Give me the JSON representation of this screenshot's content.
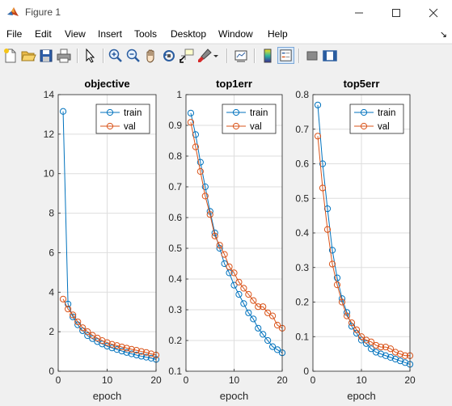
{
  "window": {
    "title": "Figure 1"
  },
  "menu": [
    "File",
    "Edit",
    "View",
    "Insert",
    "Tools",
    "Desktop",
    "Window",
    "Help"
  ],
  "toolbar": {
    "buttons": [
      "new-figure",
      "open-file",
      "save",
      "print",
      "edit-plot",
      "zoom-in",
      "zoom-out",
      "pan",
      "rotate-3d",
      "data-cursor",
      "brush",
      "link-plot",
      "insert-colorbar",
      "insert-legend",
      "hide-plot-tools",
      "show-plot-tools"
    ]
  },
  "colors": {
    "train": "#0072bd",
    "val": "#d95319"
  },
  "chart_data": [
    {
      "type": "line",
      "title": "objective",
      "xlabel": "epoch",
      "ylabel": "",
      "xlim": [
        0,
        20
      ],
      "ylim": [
        0,
        14
      ],
      "xticks": [
        0,
        10,
        20
      ],
      "yticks": [
        0,
        2,
        4,
        6,
        8,
        10,
        12,
        14
      ],
      "grid": true,
      "legend_position": "top-right",
      "x": [
        1,
        2,
        3,
        4,
        5,
        6,
        7,
        8,
        9,
        10,
        11,
        12,
        13,
        14,
        15,
        16,
        17,
        18,
        19,
        20
      ],
      "series": [
        {
          "name": "train",
          "values": [
            13.15,
            3.4,
            2.75,
            2.35,
            2.05,
            1.8,
            1.65,
            1.5,
            1.38,
            1.27,
            1.18,
            1.1,
            1.02,
            0.95,
            0.88,
            0.82,
            0.76,
            0.71,
            0.66,
            0.6
          ]
        },
        {
          "name": "val",
          "values": [
            3.65,
            3.15,
            2.85,
            2.5,
            2.2,
            2.0,
            1.82,
            1.68,
            1.55,
            1.45,
            1.36,
            1.3,
            1.23,
            1.17,
            1.11,
            1.06,
            1.0,
            0.95,
            0.88,
            0.82
          ]
        }
      ]
    },
    {
      "type": "line",
      "title": "top1err",
      "xlabel": "epoch",
      "ylabel": "",
      "xlim": [
        0,
        20
      ],
      "ylim": [
        0.1,
        1
      ],
      "xticks": [
        0,
        10,
        20
      ],
      "yticks": [
        0.1,
        0.2,
        0.3,
        0.4,
        0.5,
        0.6,
        0.7,
        0.8,
        0.9,
        1
      ],
      "grid": true,
      "legend_position": "top-right",
      "x": [
        1,
        2,
        3,
        4,
        5,
        6,
        7,
        8,
        9,
        10,
        11,
        12,
        13,
        14,
        15,
        16,
        17,
        18,
        19,
        20
      ],
      "series": [
        {
          "name": "train",
          "values": [
            0.94,
            0.87,
            0.78,
            0.7,
            0.62,
            0.55,
            0.5,
            0.45,
            0.42,
            0.38,
            0.35,
            0.32,
            0.29,
            0.27,
            0.24,
            0.22,
            0.2,
            0.18,
            0.17,
            0.16
          ]
        },
        {
          "name": "val",
          "values": [
            0.91,
            0.83,
            0.75,
            0.67,
            0.61,
            0.54,
            0.51,
            0.48,
            0.44,
            0.42,
            0.39,
            0.37,
            0.35,
            0.33,
            0.31,
            0.31,
            0.29,
            0.28,
            0.25,
            0.24
          ]
        }
      ]
    },
    {
      "type": "line",
      "title": "top5err",
      "xlabel": "epoch",
      "ylabel": "",
      "xlim": [
        0,
        20
      ],
      "ylim": [
        0,
        0.8
      ],
      "xticks": [
        0,
        10,
        20
      ],
      "yticks": [
        0,
        0.1,
        0.2,
        0.3,
        0.4,
        0.5,
        0.6,
        0.7,
        0.8
      ],
      "grid": true,
      "legend_position": "top-right",
      "x": [
        1,
        2,
        3,
        4,
        5,
        6,
        7,
        8,
        9,
        10,
        11,
        12,
        13,
        14,
        15,
        16,
        17,
        18,
        19,
        20
      ],
      "series": [
        {
          "name": "train",
          "values": [
            0.77,
            0.6,
            0.47,
            0.35,
            0.27,
            0.21,
            0.17,
            0.13,
            0.11,
            0.09,
            0.08,
            0.065,
            0.055,
            0.05,
            0.045,
            0.04,
            0.035,
            0.03,
            0.025,
            0.02
          ]
        },
        {
          "name": "val",
          "values": [
            0.68,
            0.53,
            0.41,
            0.31,
            0.25,
            0.2,
            0.16,
            0.14,
            0.12,
            0.1,
            0.09,
            0.085,
            0.075,
            0.07,
            0.07,
            0.065,
            0.055,
            0.05,
            0.045,
            0.045
          ]
        }
      ]
    }
  ]
}
